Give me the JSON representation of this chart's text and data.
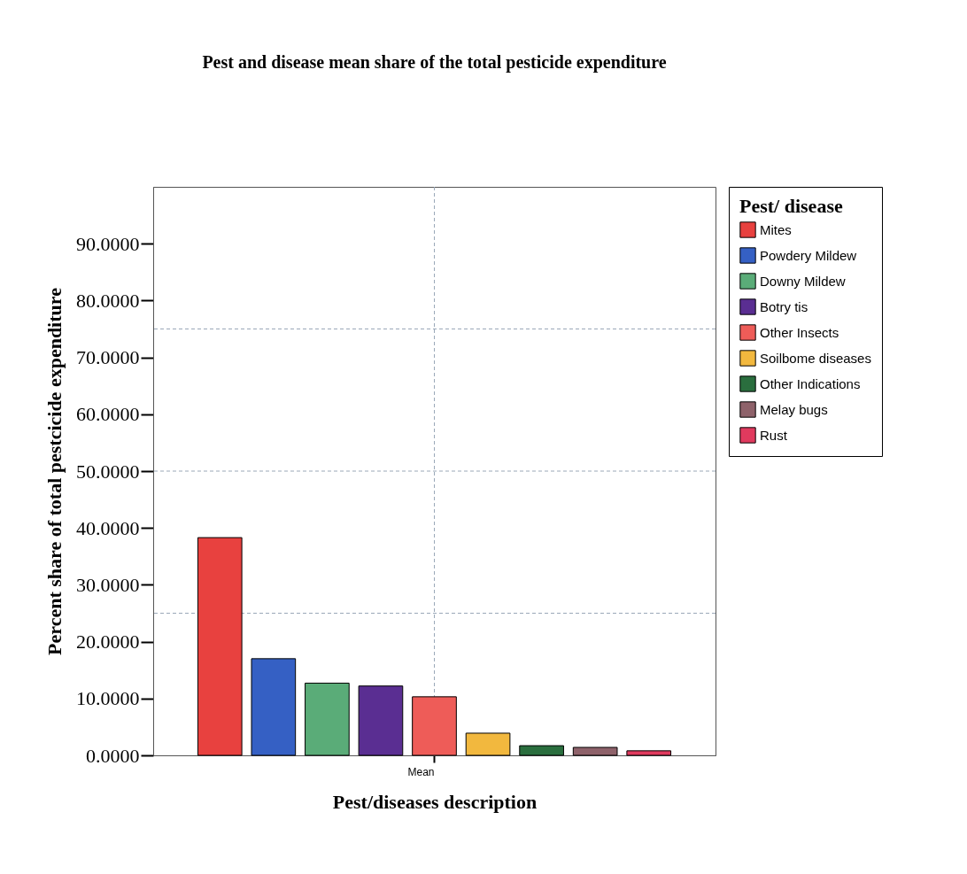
{
  "chart_data": {
    "type": "bar",
    "title": "Pest and disease mean share of the total pesticide expenditure",
    "xlabel": "Pest/diseases description",
    "ylabel": "Percent share of total pestcicide expenditure",
    "legend_title": "Pest/ disease",
    "legend": "top right",
    "categories": [
      "Mean"
    ],
    "ylim": [
      0,
      100
    ],
    "yticks": [
      {
        "value": 0,
        "label": "0.0000"
      },
      {
        "value": 10,
        "label": "10.0000"
      },
      {
        "value": 20,
        "label": "20.0000"
      },
      {
        "value": 30,
        "label": "30.0000"
      },
      {
        "value": 40,
        "label": "40.0000"
      },
      {
        "value": 50,
        "label": "50.0000"
      },
      {
        "value": 60,
        "label": "60.0000"
      },
      {
        "value": 70,
        "label": "70.0000"
      },
      {
        "value": 80,
        "label": "80.0000"
      },
      {
        "value": 90,
        "label": "90.0000"
      }
    ],
    "ref_lines": [
      {
        "axis": "x",
        "value": "Mean",
        "line_style": "dashed",
        "color": "#9aa8b8"
      },
      {
        "axis": "y",
        "value": 25,
        "line_style": "dashed",
        "color": "#9aa8b8"
      },
      {
        "axis": "y",
        "value": 50,
        "line_style": "dashed",
        "color": "#9aa8b8"
      },
      {
        "axis": "y",
        "value": 75,
        "line_style": "dashed",
        "color": "#9aa8b8"
      }
    ],
    "series": [
      {
        "name": "Mites",
        "color": "#e8413f",
        "values": [
          38.3
        ]
      },
      {
        "name": "Powdery  Mildew",
        "color": "#3560c4",
        "values": [
          17.0
        ]
      },
      {
        "name": "Downy  Mildew",
        "color": "#5aac78",
        "values": [
          12.7
        ]
      },
      {
        "name": "Botry tis",
        "color": "#5a2e92",
        "values": [
          12.2
        ]
      },
      {
        "name": "Other Insects",
        "color": "#ee5c58",
        "values": [
          10.3
        ]
      },
      {
        "name": "Soilbome diseases",
        "color": "#f2b83e",
        "values": [
          3.9
        ]
      },
      {
        "name": "Other Indications",
        "color": "#2a6e3e",
        "values": [
          1.7
        ]
      },
      {
        "name": "Melay bugs",
        "color": "#8e626a",
        "values": [
          1.4
        ]
      },
      {
        "name": "Rust",
        "color": "#e03a5e",
        "values": [
          0.8
        ]
      }
    ]
  }
}
